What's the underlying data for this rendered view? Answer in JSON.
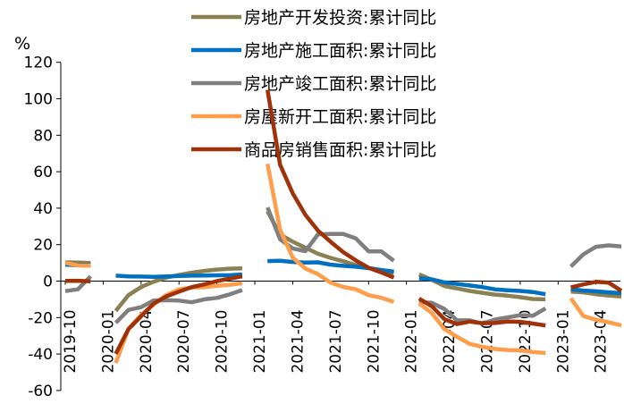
{
  "chart_data": {
    "type": "line",
    "unit_label": "%",
    "ylim": [
      -60,
      120
    ],
    "y_ticks": [
      120,
      100,
      80,
      60,
      40,
      20,
      0,
      -20,
      -40,
      -60
    ],
    "x": [
      "2019-10",
      "2019-11",
      "2019-12",
      "2020-01",
      "2020-02",
      "2020-03",
      "2020-04",
      "2020-05",
      "2020-06",
      "2020-07",
      "2020-08",
      "2020-09",
      "2020-10",
      "2020-11",
      "2020-12",
      "2021-01",
      "2021-02",
      "2021-03",
      "2021-04",
      "2021-05",
      "2021-06",
      "2021-07",
      "2021-08",
      "2021-09",
      "2021-10",
      "2021-11",
      "2021-12",
      "2022-01",
      "2022-02",
      "2022-03",
      "2022-04",
      "2022-05",
      "2022-06",
      "2022-07",
      "2022-08",
      "2022-09",
      "2022-10",
      "2022-11",
      "2022-12",
      "2023-01",
      "2023-02",
      "2023-03",
      "2023-04",
      "2023-05",
      "2023-06"
    ],
    "x_tick_labels": [
      "2019-10",
      "2020-01",
      "2020-04",
      "2020-07",
      "2020-10",
      "2021-01",
      "2021-04",
      "2021-07",
      "2021-10",
      "2022-01",
      "2022-04",
      "2022-07",
      "2022-10",
      "2023-01",
      "2023-04"
    ],
    "legend_position": "top-center",
    "grid": false,
    "series": [
      {
        "name": "房地产开发投资:累计同比",
        "color": "#8B8052",
        "values": [
          10.3,
          10.2,
          9.9,
          null,
          -16.3,
          -7.7,
          -3.3,
          -0.3,
          1.9,
          3.4,
          4.6,
          5.6,
          6.3,
          6.8,
          7.0,
          null,
          38.3,
          25.6,
          21.6,
          18.3,
          15.0,
          12.7,
          10.9,
          8.8,
          7.2,
          6.0,
          4.4,
          null,
          3.7,
          0.7,
          -2.7,
          -4.0,
          -5.4,
          -6.4,
          -7.4,
          -8.0,
          -8.8,
          -9.8,
          -10.0,
          null,
          -5.8,
          -6.2,
          -7.2,
          -7.9,
          -8.5
        ]
      },
      {
        "name": "房地产施工面积:累计同比",
        "color": "#0070C0",
        "values": [
          9.0,
          8.7,
          8.7,
          null,
          3.0,
          2.6,
          2.5,
          2.3,
          2.6,
          2.8,
          3.0,
          3.1,
          3.2,
          3.2,
          3.7,
          null,
          11.0,
          11.2,
          10.5,
          10.2,
          10.3,
          9.0,
          8.4,
          7.9,
          7.1,
          6.1,
          5.2,
          null,
          1.5,
          1.0,
          -0.7,
          -1.5,
          -2.4,
          -3.3,
          -4.5,
          -5.0,
          -5.4,
          -6.0,
          -7.2,
          null,
          -4.4,
          -5.2,
          -5.6,
          -6.2,
          -6.6
        ]
      },
      {
        "name": "房地产竣工面积:累计同比",
        "color": "#7F7F7F",
        "values": [
          -5.5,
          -4.5,
          2.6,
          null,
          -22.9,
          -15.8,
          -14.3,
          -10.6,
          -10.5,
          -10.7,
          -11.6,
          -10.0,
          -9.2,
          -7.3,
          -4.9,
          null,
          40.4,
          22.9,
          17.9,
          16.4,
          25.7,
          25.9,
          25.9,
          23.4,
          16.3,
          16.3,
          11.2,
          null,
          -11.5,
          -11.9,
          -15.3,
          -21.5,
          -21.5,
          -23.3,
          -21.1,
          -19.9,
          -18.7,
          -19.0,
          -15.0,
          null,
          8.0,
          14.7,
          18.8,
          19.6,
          19.0
        ]
      },
      {
        "name": "房屋新开工面积:累计同比",
        "color": "#FF9E4A",
        "values": [
          10.0,
          8.6,
          8.5,
          null,
          -44.9,
          -26.2,
          -18.5,
          -12.8,
          -7.6,
          -4.5,
          -3.6,
          -3.4,
          -2.6,
          -2.0,
          -1.2,
          null,
          64.3,
          28.2,
          12.8,
          6.9,
          3.8,
          -0.9,
          -3.2,
          -4.5,
          -7.7,
          -9.1,
          -11.4,
          null,
          -12.2,
          -17.5,
          -26.3,
          -30.6,
          -34.4,
          -36.1,
          -37.2,
          -37.8,
          -38.0,
          -38.9,
          -39.4,
          null,
          -9.4,
          -19.2,
          -21.2,
          -22.6,
          -24.3
        ]
      },
      {
        "name": "商品房销售面积:累计同比",
        "color": "#A0320A",
        "values": [
          0.1,
          0.2,
          -0.1,
          null,
          -39.9,
          -26.3,
          -19.3,
          -12.3,
          -8.4,
          -5.8,
          -3.3,
          -1.8,
          0.0,
          1.3,
          2.6,
          null,
          104.9,
          63.8,
          48.1,
          36.3,
          27.7,
          21.5,
          15.9,
          11.3,
          7.3,
          4.8,
          1.9,
          null,
          -9.6,
          -13.8,
          -20.9,
          -23.6,
          -22.2,
          -23.1,
          -23.0,
          -22.2,
          -22.3,
          -23.3,
          -24.3,
          null,
          -3.5,
          -1.8,
          -0.4,
          -0.9,
          -5.3
        ]
      }
    ]
  }
}
